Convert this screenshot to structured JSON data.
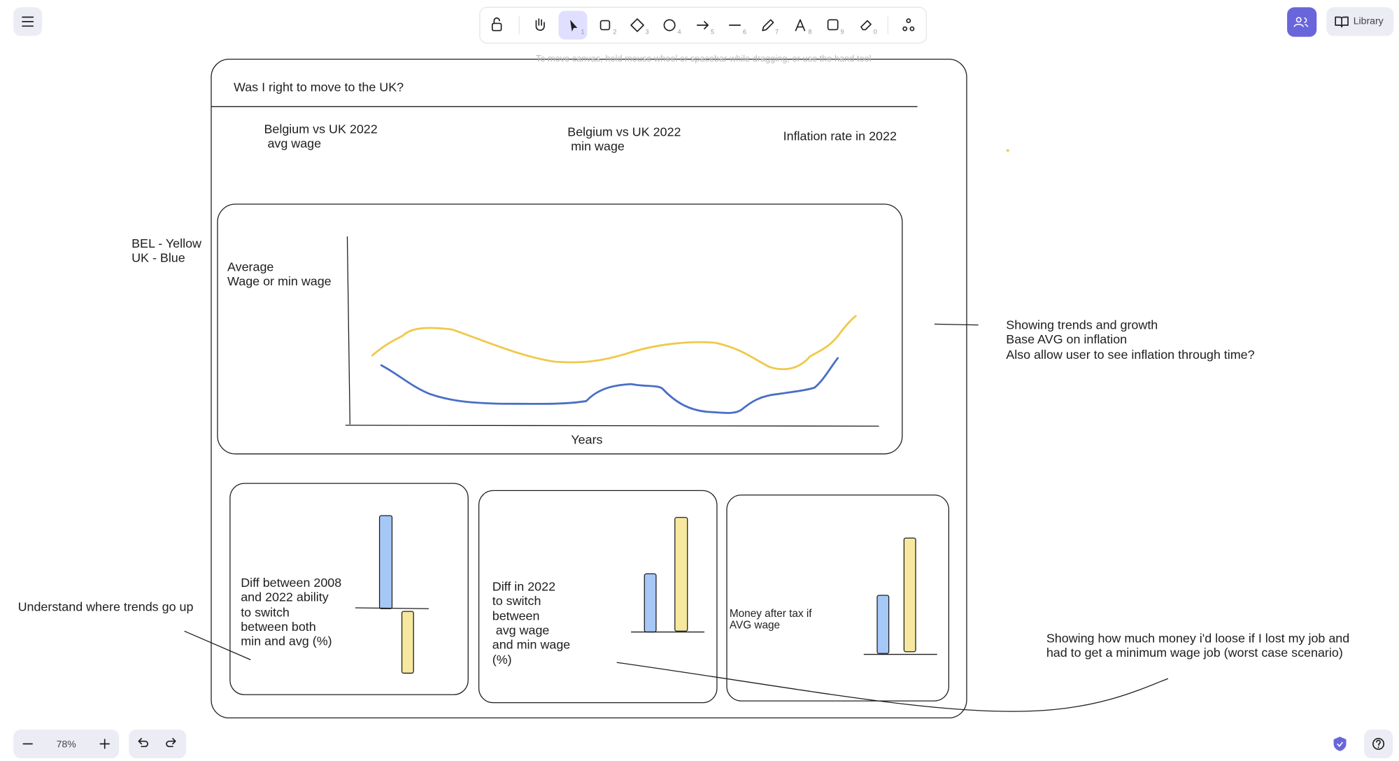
{
  "toolbar": {
    "shortcuts": [
      "1",
      "2",
      "3",
      "4",
      "5",
      "6",
      "7",
      "8",
      "9",
      "0"
    ]
  },
  "hint": "To move canvas, hold mouse wheel or spacebar while dragging, or use the hand tool",
  "zoom": "78%",
  "library": "Library",
  "canvas": {
    "title": "Was I right to move to the UK?",
    "headings": [
      [
        "Belgium vs UK 2022",
        " avg wage"
      ],
      [
        "Belgium vs UK 2022",
        " min wage"
      ],
      [
        "Inflation rate in 2022"
      ]
    ],
    "legend": [
      "BEL - Yellow",
      "UK - Blue"
    ],
    "y_axis_label": [
      "Average",
      "Wage or min wage"
    ],
    "x_axis_label": "Years",
    "panels": [
      [
        "Diff between 2008",
        "and 2022 ability",
        "to switch",
        "between both",
        "min and avg (%)"
      ],
      [
        "Diff in 2022",
        "to switch",
        "between",
        " avg wage",
        "and min wage",
        "(%)"
      ],
      [
        "Money after tax if",
        "AVG wage"
      ]
    ],
    "notes": [
      [
        "Showing trends and growth",
        "Base AVG on inflation",
        "Also allow user to see inflation through time?"
      ],
      [
        "Understand where trends go up"
      ],
      [
        "Showing how much money i'd loose if I lost my job and",
        "had to get a minimum wage job (worst case scenario)"
      ]
    ]
  }
}
